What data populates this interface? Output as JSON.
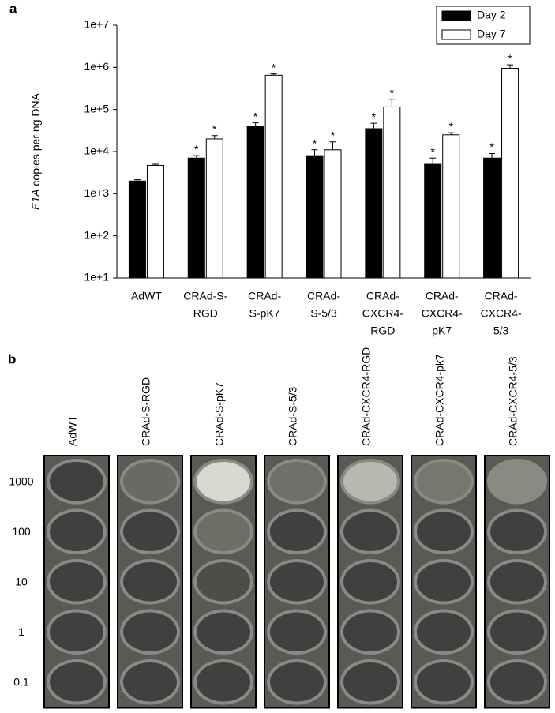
{
  "panel_a_label": "a",
  "chart_data": {
    "type": "bar",
    "log_scale": true,
    "y_label": [
      "E1A",
      " copies per ng DNA"
    ],
    "categories": [
      [
        "AdWT"
      ],
      [
        "CRAd-S-",
        "RGD"
      ],
      [
        "CRAd-",
        "S-pK7"
      ],
      [
        "CRAd-",
        "S-5/3"
      ],
      [
        "CRAd-",
        "CXCR4-",
        "RGD"
      ],
      [
        "CRAd-",
        "CXCR4-",
        "pK7"
      ],
      [
        "CRAd-",
        "CXCR4-",
        "5/3"
      ]
    ],
    "series": [
      {
        "name": "Day 2",
        "color": "#000000",
        "values": [
          2000,
          7000,
          40000,
          8000,
          35000,
          5000,
          7000
        ],
        "errors": [
          150,
          1000,
          8000,
          3000,
          12000,
          2000,
          2000
        ],
        "annotations": [
          null,
          "*",
          "*",
          "*",
          "*",
          "*",
          "*"
        ]
      },
      {
        "name": "Day 7",
        "color": "#ffffff",
        "values": [
          4700,
          20000,
          650000,
          11000,
          115000,
          25000,
          950000
        ],
        "errors": [
          300,
          4000,
          50000,
          6000,
          60000,
          3000,
          200000
        ],
        "annotations": [
          null,
          "*",
          "*",
          "*",
          "*",
          "*",
          "*"
        ]
      }
    ],
    "ylim": [
      10,
      10000000
    ],
    "yticks": [
      {
        "value": 10,
        "label": "1e+1"
      },
      {
        "value": 100,
        "label": "1e+2"
      },
      {
        "value": 1000,
        "label": "1e+3"
      },
      {
        "value": 10000,
        "label": "1e+4"
      },
      {
        "value": 100000,
        "label": "1e+5"
      },
      {
        "value": 1000000,
        "label": "1e+6"
      },
      {
        "value": 10000000,
        "label": "1e+7"
      }
    ],
    "legend": "top-right"
  },
  "panel_b": {
    "label": "b",
    "columns": [
      "AdWT",
      "CRAd-S-RGD",
      "CRAd-S-pK7",
      "CRAd-S-5/3",
      "CRAd-CXCR4-RGD",
      "CRAd-CXCR4-pk7",
      "CRAd-CXCR4-5/3"
    ],
    "rows": [
      "1000",
      "100",
      "10",
      "1",
      "0.1"
    ]
  }
}
